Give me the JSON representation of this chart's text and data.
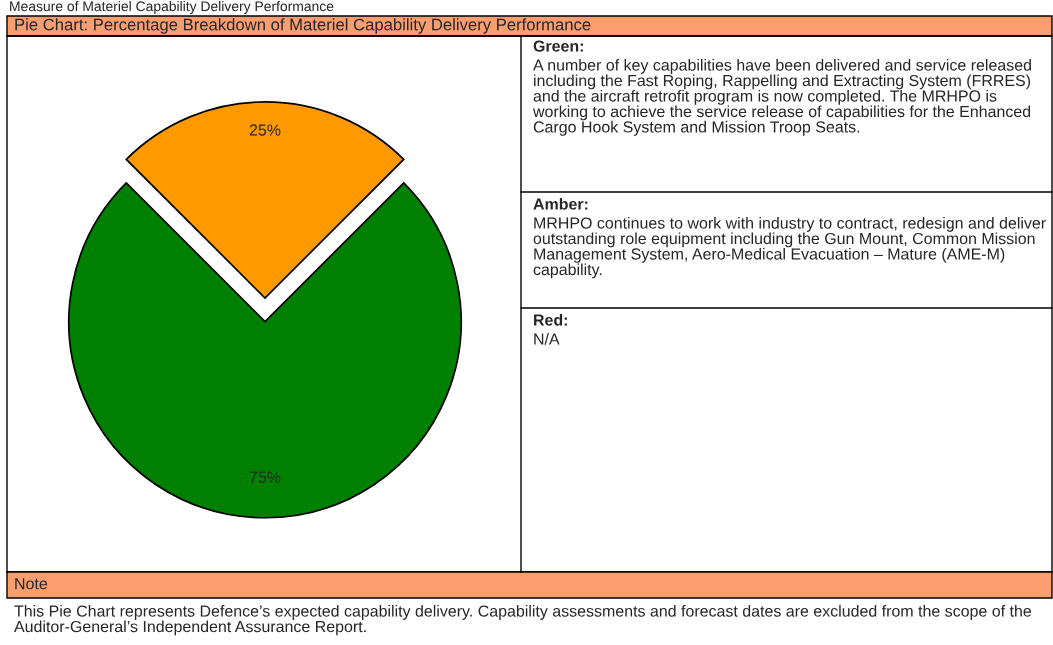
{
  "chart_data": {
    "type": "pie",
    "title": "Pie Chart: Percentage Breakdown of Materiel Capability Delivery Performance",
    "categories": [
      null,
      null
    ],
    "values": [
      75,
      25
    ],
    "colors": [
      "#008000",
      "#ff9900"
    ],
    "value_labels": [
      "75%",
      "25%"
    ],
    "annotations": [
      "Measure of Materiel Capability Delivery Performance",
      "Green:",
      "A number of key capabilities have been delivered and service released including the Fast Roping, Rappelling and Extracting System (FRRES) and the aircraft retrofit program is now completed. The MRHPO is working to achieve the service release of capabilities for the Enhanced Cargo Hook System and Mission Troop Seats.",
      "Amber:",
      "MRHPO continues to work with industry to contract, redesign and deliver outstanding role equipment including the Gun Mount, Common Mission Management System, Aero-Medical Evacuation – Mature (AME-M) capability.",
      "Red:",
      "N/A",
      "Note",
      "This Pie Chart represents Defence’s expected capability delivery. Capability assessments and forecast dates are excluded from the scope of the Auditor-General’s Independent Assurance Report."
    ]
  }
}
